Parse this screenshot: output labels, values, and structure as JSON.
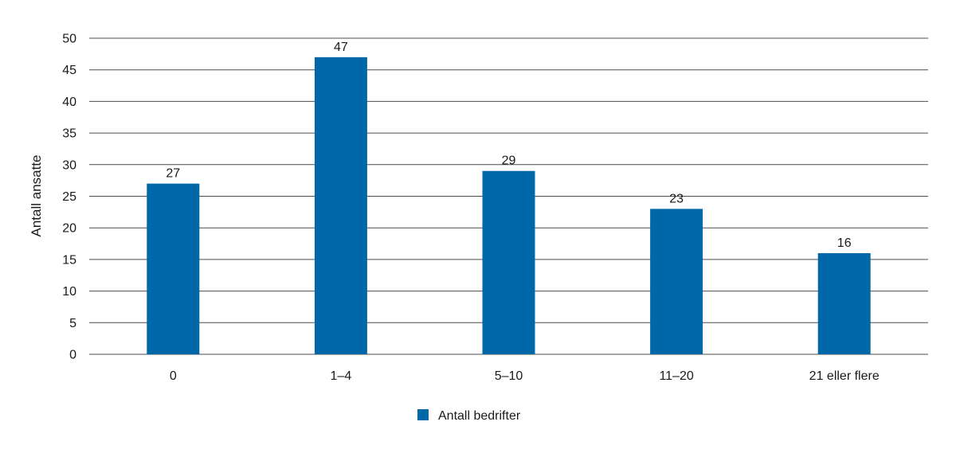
{
  "chart_data": {
    "type": "bar",
    "categories": [
      "0",
      "1–4",
      "5–10",
      "11–20",
      "21 eller flere"
    ],
    "series": [
      {
        "name": "Antall bedrifter",
        "values": [
          27,
          47,
          29,
          23,
          16
        ]
      }
    ],
    "data_labels": [
      "27",
      "47",
      "29",
      "23",
      "16"
    ],
    "ylabel": "Antall ansatte",
    "xlabel": "",
    "ylim": [
      0,
      50
    ],
    "yticks": [
      0,
      5,
      10,
      15,
      20,
      25,
      30,
      35,
      40,
      45,
      50
    ],
    "grid": true,
    "legend_position": "bottom-center",
    "colors": {
      "bar": "#0068a8",
      "grid": "#4d4d4d"
    }
  }
}
